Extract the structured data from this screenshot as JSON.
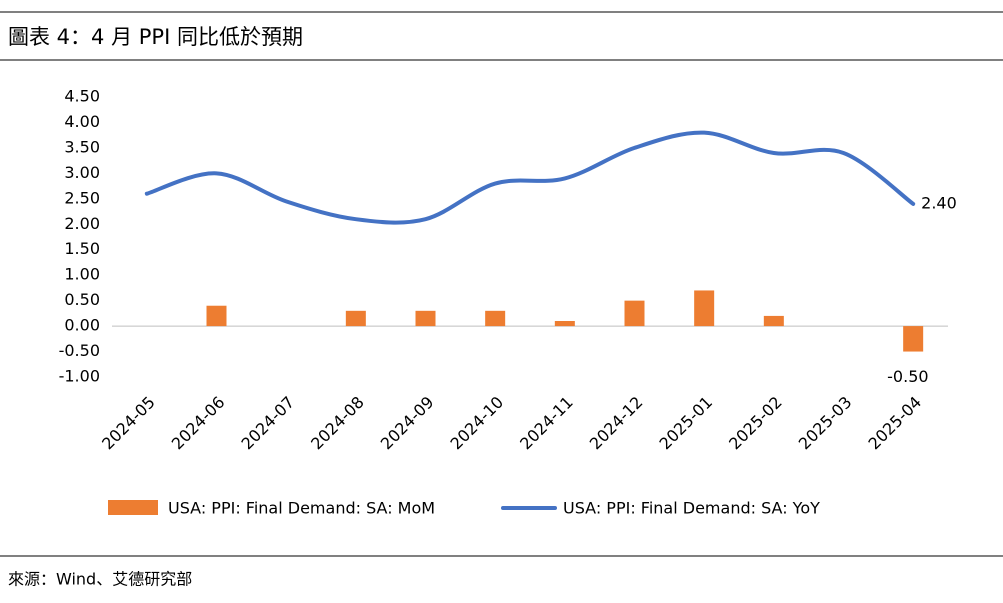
{
  "chart_data": {
    "type": "bar-line",
    "title": "圖表 4：4 月 PPI 同比低於預期",
    "source": "來源：Wind、艾德研究部",
    "categories": [
      "2024-05",
      "2024-06",
      "2024-07",
      "2024-08",
      "2024-09",
      "2024-10",
      "2024-11",
      "2024-12",
      "2025-01",
      "2025-02",
      "2025-03",
      "2025-04"
    ],
    "series": [
      {
        "name": "USA: PPI: Final Demand: SA: MoM",
        "type": "bar",
        "color": "#ed7d31",
        "values": [
          0,
          0.4,
          0,
          0.3,
          0.3,
          0.3,
          0.1,
          0.5,
          0.7,
          0.2,
          0,
          -0.5
        ],
        "value_labels": [
          null,
          null,
          null,
          null,
          null,
          null,
          null,
          null,
          null,
          null,
          null,
          "-0.50"
        ]
      },
      {
        "name": "USA: PPI: Final Demand: SA: YoY",
        "type": "line",
        "color": "#4472c4",
        "values": [
          2.6,
          3.0,
          2.45,
          2.1,
          2.1,
          2.8,
          2.9,
          3.5,
          3.8,
          3.4,
          3.4,
          2.4
        ],
        "value_labels": [
          null,
          null,
          null,
          null,
          null,
          null,
          null,
          null,
          null,
          null,
          null,
          "2.40"
        ]
      }
    ],
    "ylim": [
      -1,
      4.5
    ],
    "yticks": [
      {
        "value": -1,
        "label": "-1.00"
      },
      {
        "value": -0.5,
        "label": "-0.50"
      },
      {
        "value": 0,
        "label": "0.00"
      },
      {
        "value": 0.5,
        "label": "0.50"
      },
      {
        "value": 1,
        "label": "1.00"
      },
      {
        "value": 1.5,
        "label": "1.50"
      },
      {
        "value": 2,
        "label": "2.00"
      },
      {
        "value": 2.5,
        "label": "2.50"
      },
      {
        "value": 3,
        "label": "3.00"
      },
      {
        "value": 3.5,
        "label": "3.50"
      },
      {
        "value": 4,
        "label": "4.00"
      },
      {
        "value": 4.5,
        "label": "4.50"
      }
    ],
    "grid": false,
    "legend": "bottom"
  }
}
